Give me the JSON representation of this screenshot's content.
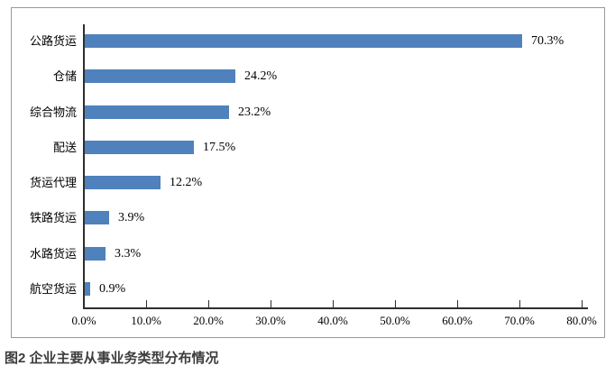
{
  "figure": {
    "caption": "图2 企业主要从事业务类型分布情况"
  },
  "chart_data": {
    "type": "bar",
    "orientation": "horizontal",
    "title": "",
    "xlabel": "",
    "ylabel": "",
    "categories": [
      "公路货运",
      "仓储",
      "综合物流",
      "配送",
      "货运代理",
      "铁路货运",
      "水路货运",
      "航空货运"
    ],
    "values": [
      70.3,
      24.2,
      23.2,
      17.5,
      12.2,
      3.9,
      3.3,
      0.9
    ],
    "value_labels": [
      "70.3%",
      "24.2%",
      "23.2%",
      "17.5%",
      "12.2%",
      "3.9%",
      "3.3%",
      "0.9%"
    ],
    "x_tick_labels": [
      "0.0%",
      "10.0%",
      "20.0%",
      "30.0%",
      "40.0%",
      "50.0%",
      "60.0%",
      "70.0%",
      "80.0%"
    ],
    "x_tick_values": [
      0,
      10,
      20,
      30,
      40,
      50,
      60,
      70,
      80
    ],
    "xlim": [
      0,
      80
    ],
    "grid": false,
    "legend": null,
    "bar_color": "#4f81bd",
    "axis_color": "#2e2e2e",
    "frame_border_color": "#9a9a9a"
  }
}
